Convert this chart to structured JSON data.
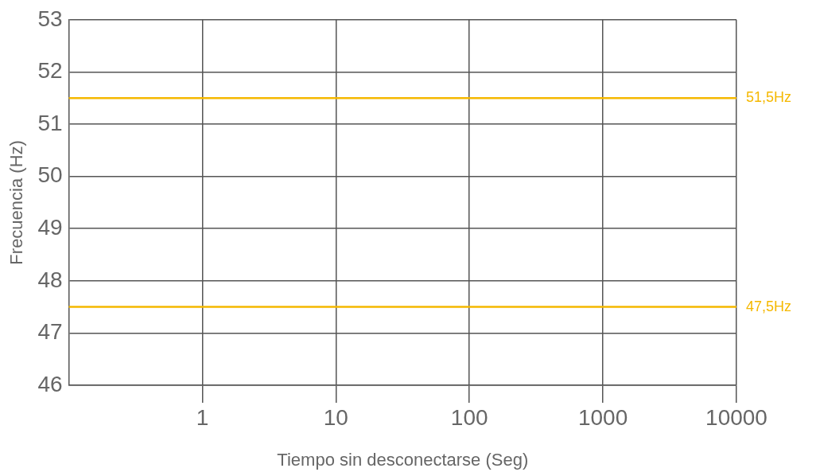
{
  "chart_data": {
    "type": "line",
    "xlabel": "Tiempo sin desconectarse (Seg)",
    "ylabel": "Frecuencia (Hz)",
    "log": "x",
    "xlim": [
      0.1,
      10000
    ],
    "xticks": [
      1,
      10,
      100,
      1000,
      10000
    ],
    "ylim": [
      46,
      53
    ],
    "yticks": [
      46,
      47,
      48,
      49,
      50,
      51,
      52,
      53
    ],
    "grid": true,
    "ref_lines": [
      {
        "axis": "y",
        "value": 51.5,
        "label": "51,5Hz",
        "color": "#f5b800"
      },
      {
        "axis": "y",
        "value": 47.5,
        "label": "47,5Hz",
        "color": "#f5b800"
      }
    ]
  }
}
